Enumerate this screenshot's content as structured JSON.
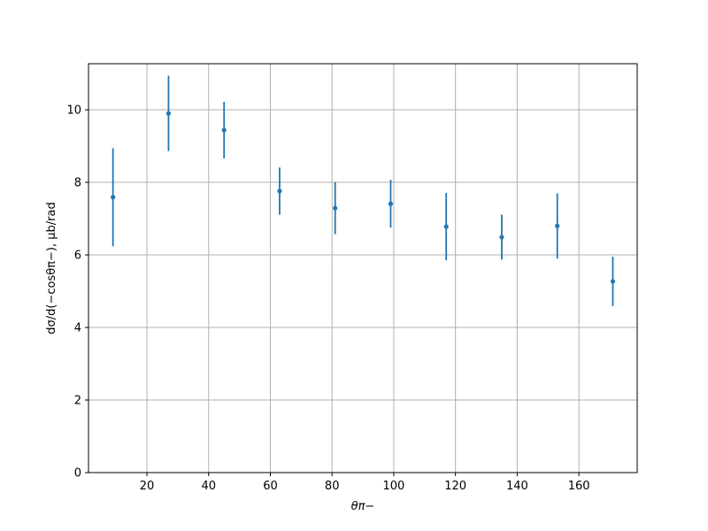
{
  "chart_data": {
    "type": "errorbar",
    "xlabel": "θπ−",
    "ylabel": "dσ/d(−cosθπ−), μb/rad",
    "x": [
      9,
      27,
      45,
      63,
      81,
      99,
      117,
      135,
      153,
      171
    ],
    "series": [
      {
        "color": "#1f77b4",
        "values": [
          7.59,
          9.9,
          9.44,
          7.76,
          7.29,
          7.41,
          6.78,
          6.49,
          6.8,
          5.27
        ],
        "errors": [
          1.35,
          1.04,
          0.78,
          0.65,
          0.72,
          0.66,
          0.93,
          0.62,
          0.9,
          0.68
        ]
      }
    ],
    "xlim": [
      1.06,
      178.9
    ],
    "ylim": [
      0,
      11.27
    ],
    "xticks": [
      20,
      40,
      60,
      80,
      100,
      120,
      140,
      160
    ],
    "yticks": [
      0,
      2,
      4,
      6,
      8,
      10
    ],
    "grid": true
  }
}
